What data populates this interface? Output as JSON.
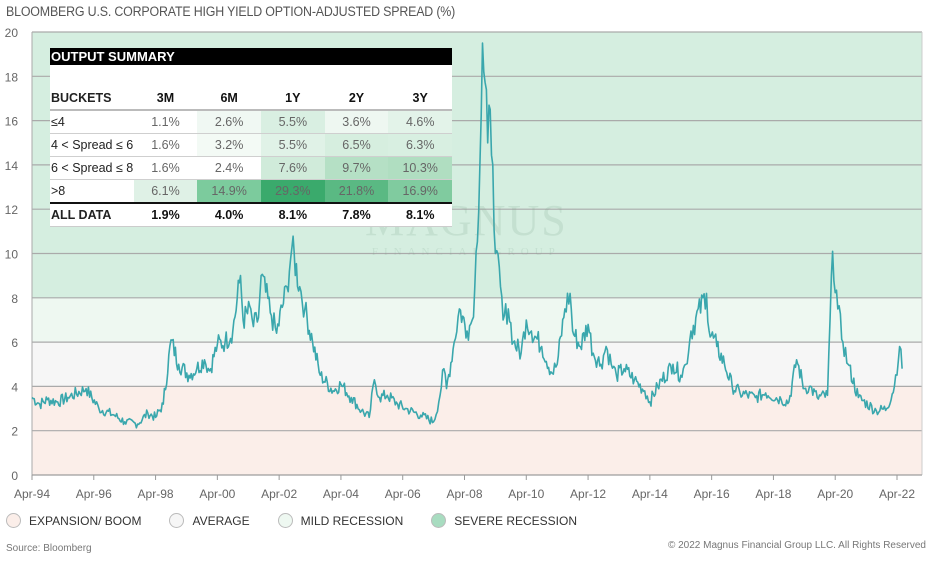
{
  "title": "BLOOMBERG U.S. CORPORATE HIGH YIELD OPTION-ADJUSTED SPREAD (%)",
  "watermark": {
    "name": "MAGNUS",
    "sub": "FINANCIAL GROUP"
  },
  "table": {
    "title": "OUTPUT SUMMARY",
    "headers": [
      "BUCKETS",
      "3M",
      "6M",
      "1Y",
      "2Y",
      "3Y"
    ],
    "rows": [
      {
        "label": "≤4",
        "values": [
          "1.1%",
          "2.6%",
          "5.5%",
          "3.6%",
          "4.6%"
        ],
        "colors": [
          "#ffffff",
          "#f0f8f3",
          "#d9efe2",
          "#eef7f1",
          "#e3f3e9"
        ]
      },
      {
        "label": "4 < Spread ≤ 6",
        "values": [
          "1.6%",
          "3.2%",
          "5.5%",
          "6.5%",
          "6.3%"
        ],
        "colors": [
          "#ffffff",
          "#f3faf5",
          "#e0f2e7",
          "#d6eedf",
          "#d8efe1"
        ]
      },
      {
        "label": "6 < Spread ≤ 8",
        "values": [
          "1.6%",
          "2.4%",
          "7.6%",
          "9.7%",
          "10.3%"
        ],
        "colors": [
          "#ffffff",
          "#ffffff",
          "#d0ebda",
          "#b5e0c5",
          "#b0dec1"
        ]
      },
      {
        "label": ">8",
        "values": [
          "6.1%",
          "14.9%",
          "29.3%",
          "21.8%",
          "16.9%"
        ],
        "colors": [
          "#dff1e6",
          "#7ccb9d",
          "#3aaa6c",
          "#5ab983",
          "#80cb9f"
        ]
      }
    ],
    "all": {
      "label": "ALL DATA",
      "values": [
        "1.9%",
        "4.0%",
        "8.1%",
        "7.8%",
        "8.1%"
      ]
    }
  },
  "legend": [
    {
      "label": "EXPANSION/ BOOM",
      "color": "#fbeee9"
    },
    {
      "label": "AVERAGE",
      "color": "#f6f6f6"
    },
    {
      "label": "MILD RECESSION",
      "color": "#eef8f1"
    },
    {
      "label": "SEVERE RECESSION",
      "color": "#a8dcc0"
    }
  ],
  "source": "Source: Bloomberg",
  "copyright": "© 2022 Magnus Financial Group LLC. All Rights Reserved",
  "chart_data": {
    "type": "line",
    "title": "BLOOMBERG U.S. CORPORATE HIGH YIELD OPTION-ADJUSTED SPREAD (%)",
    "ylim": [
      0,
      20
    ],
    "yticks": [
      0,
      2,
      4,
      6,
      8,
      10,
      12,
      14,
      16,
      18,
      20
    ],
    "xlim": [
      "1994-04",
      "2022-12"
    ],
    "xticks": [
      "Apr-94",
      "Apr-96",
      "Apr-98",
      "Apr-00",
      "Apr-02",
      "Apr-04",
      "Apr-06",
      "Apr-08",
      "Apr-10",
      "Apr-12",
      "Apr-14",
      "Apr-16",
      "Apr-18",
      "Apr-20",
      "Apr-22"
    ],
    "grid": true,
    "line_color": "#3aa7ad",
    "bands": [
      {
        "label": "EXPANSION/ BOOM",
        "from": 0,
        "to": 4,
        "color": "#fbeee9"
      },
      {
        "label": "AVERAGE",
        "from": 4,
        "to": 6,
        "color": "#f6f6f6"
      },
      {
        "label": "MILD RECESSION",
        "from": 6,
        "to": 8,
        "color": "#eef8f1"
      },
      {
        "label": "SEVERE RECESSION",
        "from": 8,
        "to": 20,
        "color": "#d5eee0"
      }
    ],
    "series": [
      {
        "points": [
          [
            "1994-04",
            3.5
          ],
          [
            "1994-07",
            3.2
          ],
          [
            "1994-10",
            3.4
          ],
          [
            "1995-02",
            3.3
          ],
          [
            "1995-06",
            3.5
          ],
          [
            "1996-01",
            3.9
          ],
          [
            "1996-06",
            3.0
          ],
          [
            "1996-12",
            2.7
          ],
          [
            "1997-04",
            2.4
          ],
          [
            "1997-09",
            2.3
          ],
          [
            "1998-01",
            2.8
          ],
          [
            "1998-04",
            2.6
          ],
          [
            "1998-07",
            3.2
          ],
          [
            "1998-10",
            6.1
          ],
          [
            "1999-01",
            5.0
          ],
          [
            "1999-05",
            4.5
          ],
          [
            "1999-08",
            4.8
          ],
          [
            "1999-11",
            5.2
          ],
          [
            "2000-01",
            4.7
          ],
          [
            "2000-04",
            5.9
          ],
          [
            "2000-07",
            6.0
          ],
          [
            "2000-10",
            6.5
          ],
          [
            "2001-01",
            9.0
          ],
          [
            "2001-02",
            7.0
          ],
          [
            "2001-05",
            7.5
          ],
          [
            "2001-06",
            6.7
          ],
          [
            "2001-08",
            7.1
          ],
          [
            "2001-09",
            9.0
          ],
          [
            "2002-01",
            7.2
          ],
          [
            "2002-03",
            6.4
          ],
          [
            "2002-07",
            8.5
          ],
          [
            "2002-09",
            10.3
          ],
          [
            "2002-12",
            8.5
          ],
          [
            "2003-02",
            7.5
          ],
          [
            "2003-05",
            6.0
          ],
          [
            "2003-08",
            4.5
          ],
          [
            "2004-01",
            3.8
          ],
          [
            "2004-04",
            4.1
          ],
          [
            "2004-08",
            3.5
          ],
          [
            "2004-12",
            2.9
          ],
          [
            "2005-03",
            2.6
          ],
          [
            "2005-05",
            4.3
          ],
          [
            "2005-07",
            3.5
          ],
          [
            "2005-10",
            3.6
          ],
          [
            "2006-02",
            3.2
          ],
          [
            "2006-05",
            3.0
          ],
          [
            "2006-11",
            2.7
          ],
          [
            "2007-04",
            2.4
          ],
          [
            "2007-06",
            3.3
          ],
          [
            "2007-08",
            4.8
          ],
          [
            "2007-09",
            3.9
          ],
          [
            "2007-12",
            6.0
          ],
          [
            "2008-02",
            7.5
          ],
          [
            "2008-05",
            6.5
          ],
          [
            "2008-07",
            7.0
          ],
          [
            "2008-08",
            8.5
          ],
          [
            "2008-10",
            14.0
          ],
          [
            "2008-11",
            19.5
          ],
          [
            "2009-01",
            15.0
          ],
          [
            "2009-02",
            16.5
          ],
          [
            "2009-03",
            14.0
          ],
          [
            "2009-04",
            10.0
          ],
          [
            "2009-06",
            8.5
          ],
          [
            "2009-07",
            7.0
          ],
          [
            "2009-09",
            7.5
          ],
          [
            "2009-11",
            6.0
          ],
          [
            "2010-02",
            5.5
          ],
          [
            "2010-04",
            7.0
          ],
          [
            "2010-06",
            6.5
          ],
          [
            "2010-10",
            5.8
          ],
          [
            "2011-02",
            4.6
          ],
          [
            "2011-04",
            5.0
          ],
          [
            "2011-07",
            7.5
          ],
          [
            "2011-09",
            8.2
          ],
          [
            "2011-10",
            6.5
          ],
          [
            "2012-01",
            5.8
          ],
          [
            "2012-04",
            6.8
          ],
          [
            "2012-06",
            5.5
          ],
          [
            "2012-09",
            5.0
          ],
          [
            "2012-11",
            5.8
          ],
          [
            "2013-01",
            5.0
          ],
          [
            "2013-03",
            4.5
          ],
          [
            "2013-06",
            4.8
          ],
          [
            "2013-10",
            4.3
          ],
          [
            "2014-02",
            3.8
          ],
          [
            "2014-04",
            3.3
          ],
          [
            "2014-07",
            4.0
          ],
          [
            "2015-01",
            5.0
          ],
          [
            "2015-04",
            4.5
          ],
          [
            "2015-06",
            5.0
          ],
          [
            "2015-08",
            6.5
          ],
          [
            "2016-02",
            8.2
          ],
          [
            "2016-03",
            6.5
          ],
          [
            "2016-06",
            5.8
          ],
          [
            "2016-09",
            5.0
          ],
          [
            "2016-12",
            4.0
          ],
          [
            "2017-03",
            3.7
          ],
          [
            "2017-09",
            3.5
          ],
          [
            "2018-01",
            3.7
          ],
          [
            "2018-07",
            3.4
          ],
          [
            "2018-10",
            3.3
          ],
          [
            "2019-01",
            5.2
          ],
          [
            "2019-04",
            3.9
          ],
          [
            "2019-06",
            4.0
          ],
          [
            "2019-09",
            3.5
          ],
          [
            "2020-01",
            3.6
          ],
          [
            "2020-03",
            10.1
          ],
          [
            "2020-05",
            7.5
          ],
          [
            "2020-07",
            6.0
          ],
          [
            "2020-09",
            5.0
          ],
          [
            "2021-01",
            3.5
          ],
          [
            "2021-08",
            2.9
          ],
          [
            "2021-12",
            3.0
          ],
          [
            "2022-03",
            4.0
          ],
          [
            "2022-05",
            5.8
          ],
          [
            "2022-06",
            4.8
          ]
        ]
      }
    ]
  }
}
